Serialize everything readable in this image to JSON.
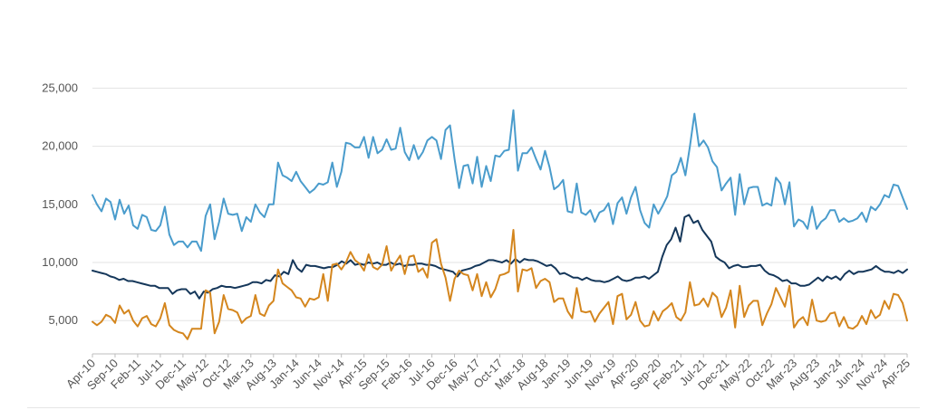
{
  "chart_data": {
    "type": "line",
    "title": "",
    "xlabel": "",
    "ylabel": "",
    "ylim": [
      2000,
      26000
    ],
    "yticks": [
      5000,
      10000,
      15000,
      20000,
      25000
    ],
    "ytick_labels": [
      "5,000",
      "10,000",
      "15,000",
      "20,000",
      "25,000"
    ],
    "grid": true,
    "legend": "none",
    "x_start": "2010-04",
    "x_end": "2025-04",
    "xtick_labels": [
      "Apr-10",
      "Sep-10",
      "Feb-11",
      "Jul-11",
      "Dec-11",
      "May-12",
      "Oct-12",
      "Mar-13",
      "Aug-13",
      "Jan-14",
      "Jun-14",
      "Nov-14",
      "Apr-15",
      "Sep-15",
      "Feb-16",
      "Jul-16",
      "Dec-16",
      "May-17",
      "Oct-17",
      "Mar-18",
      "Aug-18",
      "Jan-19",
      "Jun-19",
      "Nov-19",
      "Apr-20",
      "Sep-20",
      "Feb-21",
      "Jul-21",
      "Dec-21",
      "May-22",
      "Oct-22",
      "Mar-23",
      "Aug-23",
      "Jan-24",
      "Jun-24",
      "Nov-24",
      "Apr-25"
    ],
    "series": [
      {
        "color": "#4a9ccc",
        "values": [
          15800,
          15000,
          14400,
          15500,
          15200,
          13700,
          15400,
          14200,
          14900,
          13200,
          12900,
          14100,
          13900,
          12800,
          12700,
          13200,
          14800,
          12400,
          11500,
          11800,
          11800,
          11300,
          11800,
          11800,
          11000,
          14000,
          15000,
          12000,
          13500,
          15500,
          14200,
          14100,
          14200,
          12700,
          13900,
          13500,
          15000,
          14300,
          13900,
          15000,
          15000,
          18600,
          17500,
          17300,
          17000,
          17800,
          17000,
          16500,
          16000,
          16300,
          16800,
          16700,
          16900,
          18600,
          16500,
          17800,
          20300,
          20200,
          19900,
          19900,
          20800,
          19000,
          20800,
          19400,
          19700,
          20600,
          19700,
          19800,
          21600,
          19500,
          18800,
          20100,
          18900,
          19500,
          20500,
          20800,
          20500,
          18900,
          21400,
          21800,
          18900,
          16400,
          18300,
          18400,
          16800,
          19100,
          16500,
          18300,
          17000,
          19200,
          19100,
          19600,
          19700,
          23100,
          17900,
          19400,
          19400,
          19900,
          18900,
          18000,
          19600,
          18200,
          16300,
          16600,
          17100,
          14400,
          14300,
          16800,
          14300,
          14100,
          14500,
          13500,
          14300,
          14500,
          15100,
          13300,
          15100,
          15600,
          14200,
          15600,
          16500,
          14500,
          13400,
          13000,
          15000,
          14200,
          14900,
          15700,
          17500,
          17800,
          19000,
          17500,
          20000,
          22800,
          20000,
          20500,
          19900,
          18700,
          18200,
          16200,
          16800,
          17300,
          14100,
          17600,
          15000,
          16400,
          16500,
          16500,
          14900,
          15100,
          14900,
          17300,
          16800,
          15000,
          16900,
          13100,
          13700,
          13500,
          12900,
          14800,
          12900,
          13500,
          13800,
          14500,
          14500,
          13500,
          13800,
          13500,
          13600,
          13800,
          14300,
          13500,
          14800,
          14500,
          15000,
          15800,
          15600,
          16700,
          16600,
          15600,
          14600
        ]
      },
      {
        "color": "#15375a",
        "values": [
          9300,
          9200,
          9100,
          9000,
          8800,
          8700,
          8500,
          8600,
          8400,
          8400,
          8300,
          8200,
          8100,
          8000,
          8000,
          7800,
          7800,
          7800,
          7300,
          7600,
          7700,
          7700,
          7300,
          7500,
          6900,
          7500,
          7400,
          7700,
          7800,
          8000,
          7900,
          7900,
          7800,
          7900,
          8000,
          8100,
          8300,
          8300,
          8200,
          8500,
          8400,
          8900,
          8800,
          9200,
          9000,
          10200,
          9500,
          9200,
          9800,
          9700,
          9700,
          9600,
          9500,
          9600,
          9600,
          9800,
          10100,
          9900,
          10200,
          9800,
          9900,
          9800,
          10000,
          9900,
          10000,
          9800,
          9800,
          10000,
          9800,
          9900,
          9700,
          9800,
          9800,
          9900,
          9900,
          9800,
          9800,
          9700,
          9500,
          9400,
          9300,
          9200,
          8800,
          9300,
          9400,
          9500,
          9700,
          9800,
          10000,
          10200,
          10200,
          10100,
          10000,
          10200,
          9900,
          10300,
          10000,
          10300,
          10200,
          10200,
          10100,
          9900,
          9700,
          9800,
          9500,
          9000,
          9100,
          8900,
          8700,
          8700,
          8500,
          8700,
          8500,
          8400,
          8400,
          8300,
          8400,
          8600,
          8800,
          8500,
          8400,
          8500,
          8700,
          8700,
          8800,
          8600,
          8900,
          9200,
          10500,
          11500,
          12000,
          13000,
          11800,
          13900,
          14100,
          13400,
          13600,
          12800,
          12300,
          11800,
          10500,
          10200,
          10000,
          9500,
          9700,
          9800,
          9600,
          9600,
          9700,
          9700,
          9800,
          9300,
          9000,
          8900,
          8700,
          8400,
          8500,
          8200,
          8200,
          8000,
          8000,
          8100,
          8400,
          8700,
          8400,
          8800,
          8600,
          8800,
          8500,
          9000,
          9300,
          9000,
          9200,
          9200,
          9300,
          9400,
          9700,
          9400,
          9200,
          9200,
          9100,
          9300,
          9100,
          9400
        ]
      },
      {
        "color": "#d4861e",
        "values": [
          4900,
          4600,
          4900,
          5500,
          5300,
          4800,
          6300,
          5600,
          5900,
          5000,
          4500,
          5200,
          5400,
          4700,
          4500,
          5200,
          6500,
          4600,
          4200,
          4000,
          3900,
          3400,
          4300,
          4300,
          4300,
          7600,
          7400,
          3900,
          4900,
          7200,
          6000,
          5900,
          5700,
          4800,
          5200,
          5400,
          7200,
          5600,
          5400,
          6300,
          6700,
          9400,
          8200,
          7900,
          7600,
          7000,
          6900,
          6200,
          6900,
          6800,
          7000,
          9000,
          6700,
          9800,
          9900,
          9400,
          10000,
          10900,
          10200,
          9900,
          9300,
          10700,
          9600,
          9400,
          9800,
          11400,
          9300,
          10000,
          10600,
          9000,
          10500,
          10600,
          9200,
          9500,
          8700,
          11700,
          12000,
          9900,
          8700,
          6700,
          8600,
          9300,
          9000,
          8900,
          7600,
          9000,
          7100,
          8300,
          7000,
          7700,
          8900,
          9000,
          9200,
          12800,
          7500,
          9400,
          9300,
          9500,
          7800,
          8400,
          8600,
          8300,
          6600,
          6900,
          6900,
          5800,
          5200,
          7800,
          5800,
          5700,
          5800,
          4900,
          5600,
          6100,
          6600,
          4700,
          7100,
          7300,
          5100,
          5500,
          6600,
          5000,
          4500,
          4600,
          5800,
          5000,
          5800,
          6100,
          6500,
          5300,
          5000,
          5700,
          8300,
          6300,
          6400,
          6900,
          6200,
          7400,
          7000,
          5300,
          6100,
          7600,
          4400,
          8000,
          5300,
          6300,
          6700,
          6700,
          4600,
          5600,
          6400,
          7800,
          7000,
          6200,
          8000,
          4400,
          5000,
          5300,
          4600,
          6800,
          5000,
          4900,
          5000,
          5600,
          5700,
          4500,
          5300,
          4400,
          4300,
          4600,
          5400,
          4700,
          5900,
          5200,
          5500,
          6700,
          6000,
          7300,
          7200,
          6500,
          5000
        ]
      }
    ]
  }
}
